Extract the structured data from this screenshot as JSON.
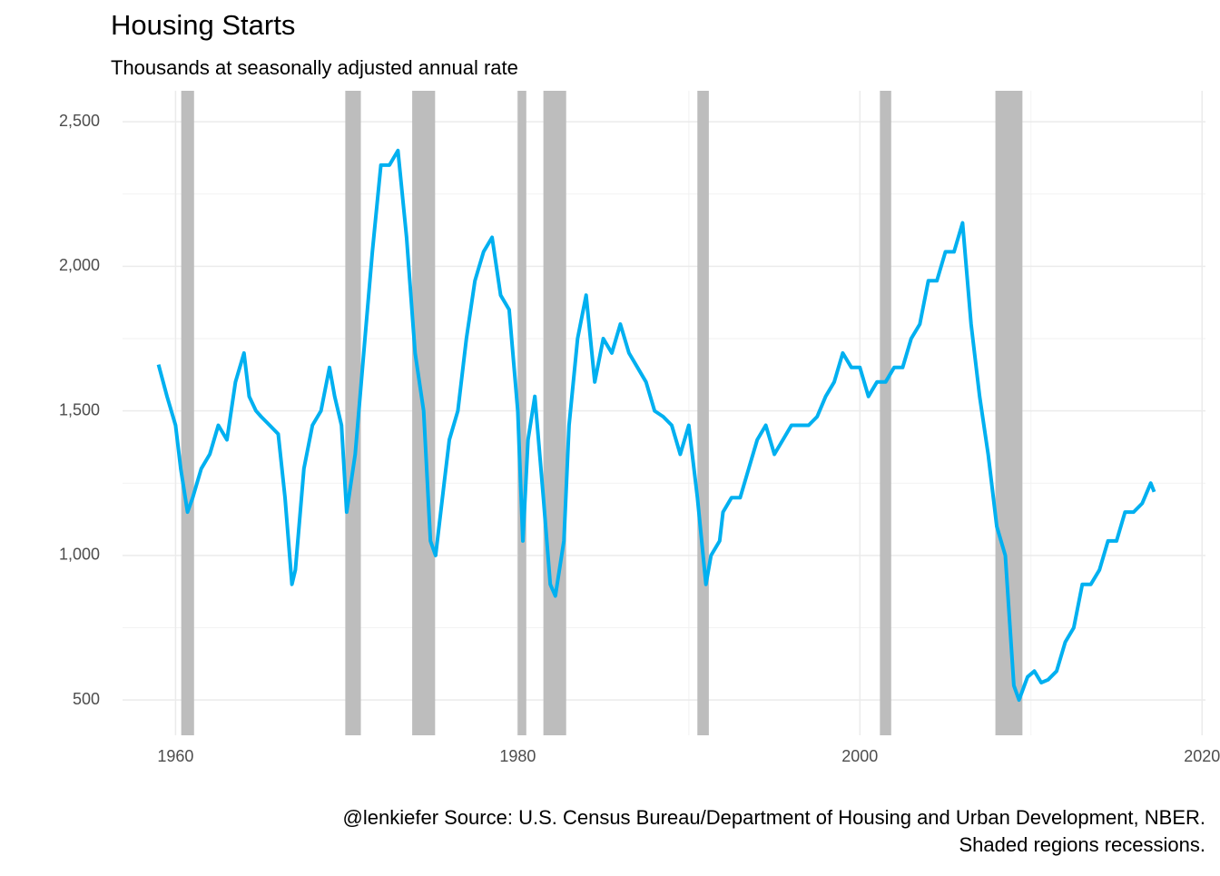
{
  "chart_data": {
    "type": "line",
    "title": "Housing Starts",
    "subtitle": "Thousands at seasonally adjusted annual rate",
    "caption": [
      "@lenkiefer Source: U.S. Census Bureau/Department of Housing and Urban Development, NBER.",
      "Shaded regions recessions."
    ],
    "xlim": [
      1956.9,
      2020.2
    ],
    "xticks": [
      1960,
      1980,
      2000,
      2020
    ],
    "x_minor_ticks": [
      1970,
      1990,
      2010
    ],
    "ylim": [
      378,
      2607
    ],
    "yticks": [
      500,
      {
        "value": 1000,
        "label": "1,000"
      },
      {
        "value": 1500,
        "label": "1,500"
      },
      {
        "value": 2000,
        "label": "2,000"
      },
      {
        "value": 2500,
        "label": "2,500"
      }
    ],
    "y_minor_ticks": [
      750,
      1250,
      1750,
      2250
    ],
    "grid": true,
    "recession_color": "#bdbdbd",
    "recessions": [
      {
        "start": 1960.33,
        "end": 1961.08
      },
      {
        "start": 1969.92,
        "end": 1970.83
      },
      {
        "start": 1973.83,
        "end": 1975.17
      },
      {
        "start": 1980.0,
        "end": 1980.5
      },
      {
        "start": 1981.5,
        "end": 1982.83
      },
      {
        "start": 1990.5,
        "end": 1991.17
      },
      {
        "start": 2001.17,
        "end": 2001.83
      },
      {
        "start": 2007.92,
        "end": 2009.5
      }
    ],
    "x": [
      1959.0,
      1959.5,
      1960.0,
      1960.3,
      1960.7,
      1961.0,
      1961.5,
      1962.0,
      1962.5,
      1963.0,
      1963.5,
      1964.0,
      1964.3,
      1964.7,
      1965.0,
      1965.5,
      1966.0,
      1966.4,
      1966.8,
      1967.0,
      1967.5,
      1968.0,
      1968.5,
      1969.0,
      1969.3,
      1969.7,
      1970.0,
      1970.5,
      1971.0,
      1971.5,
      1972.0,
      1972.5,
      1973.0,
      1973.5,
      1974.0,
      1974.5,
      1974.9,
      1975.2,
      1975.7,
      1976.0,
      1976.5,
      1977.0,
      1977.5,
      1978.0,
      1978.5,
      1979.0,
      1979.5,
      1980.0,
      1980.3,
      1980.6,
      1981.0,
      1981.5,
      1981.9,
      1982.2,
      1982.7,
      1983.0,
      1983.5,
      1984.0,
      1984.5,
      1985.0,
      1985.5,
      1986.0,
      1986.5,
      1987.0,
      1987.5,
      1988.0,
      1988.5,
      1989.0,
      1989.5,
      1990.0,
      1990.5,
      1991.0,
      1991.3,
      1991.8,
      1992.0,
      1992.5,
      1993.0,
      1993.5,
      1994.0,
      1994.5,
      1995.0,
      1995.5,
      1996.0,
      1996.5,
      1997.0,
      1997.5,
      1998.0,
      1998.5,
      1999.0,
      1999.5,
      2000.0,
      2000.5,
      2001.0,
      2001.5,
      2002.0,
      2002.5,
      2003.0,
      2003.5,
      2004.0,
      2004.5,
      2005.0,
      2005.5,
      2006.0,
      2006.5,
      2007.0,
      2007.5,
      2008.0,
      2008.5,
      2009.0,
      2009.3,
      2009.8,
      2010.2,
      2010.6,
      2011.0,
      2011.5,
      2012.0,
      2012.5,
      2013.0,
      2013.5,
      2014.0,
      2014.5,
      2015.0,
      2015.5,
      2016.0,
      2016.5,
      2017.0,
      2017.2
    ],
    "series": [
      {
        "name": "Housing starts",
        "color": "#00b0f0",
        "values": [
          1660,
          1550,
          1450,
          1300,
          1150,
          1200,
          1300,
          1350,
          1450,
          1400,
          1600,
          1700,
          1550,
          1500,
          1480,
          1450,
          1420,
          1200,
          900,
          950,
          1300,
          1450,
          1500,
          1650,
          1550,
          1450,
          1150,
          1350,
          1700,
          2050,
          2350,
          2350,
          2400,
          2100,
          1700,
          1500,
          1050,
          1000,
          1250,
          1400,
          1500,
          1750,
          1950,
          2050,
          2100,
          1900,
          1850,
          1500,
          1050,
          1400,
          1550,
          1200,
          900,
          860,
          1050,
          1450,
          1750,
          1900,
          1600,
          1750,
          1700,
          1800,
          1700,
          1650,
          1600,
          1500,
          1480,
          1450,
          1350,
          1450,
          1200,
          900,
          1000,
          1050,
          1150,
          1200,
          1200,
          1300,
          1400,
          1450,
          1350,
          1400,
          1450,
          1450,
          1450,
          1480,
          1550,
          1600,
          1700,
          1650,
          1650,
          1550,
          1600,
          1600,
          1650,
          1650,
          1750,
          1800,
          1950,
          1950,
          2050,
          2050,
          2150,
          1800,
          1550,
          1350,
          1100,
          1000,
          550,
          500,
          580,
          600,
          560,
          570,
          600,
          700,
          750,
          900,
          900,
          950,
          1050,
          1050,
          1150,
          1150,
          1180,
          1250,
          1220
        ]
      }
    ]
  }
}
